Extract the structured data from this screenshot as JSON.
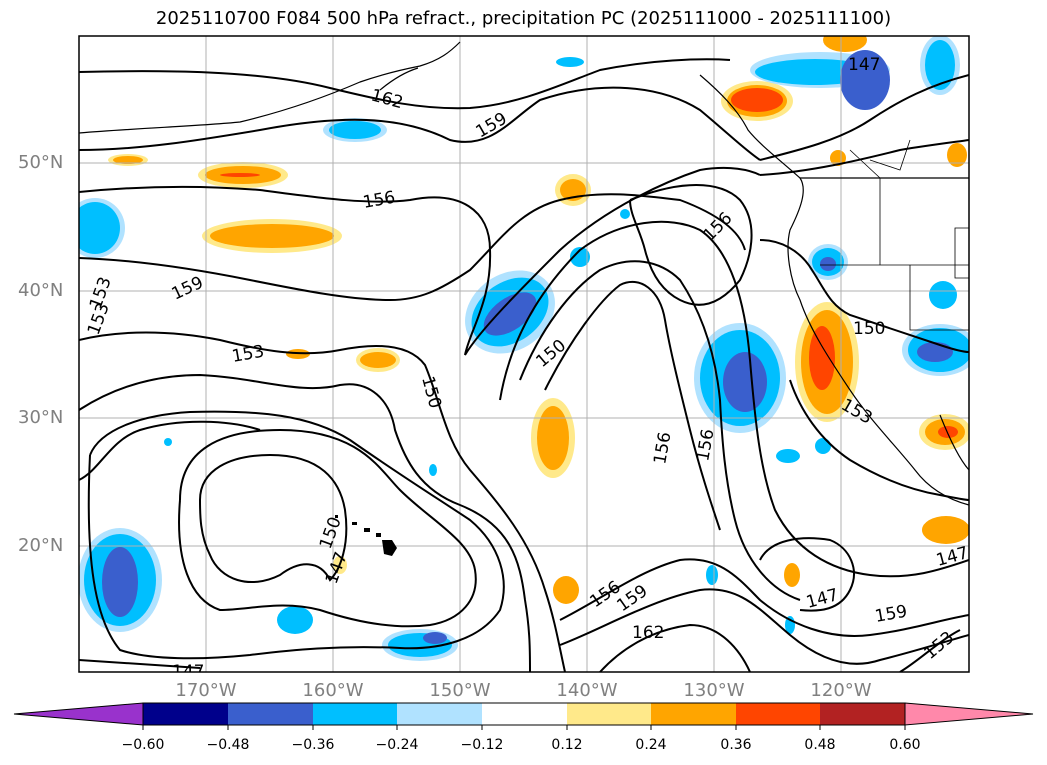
{
  "title": "2025110700 F084 500 hPa refract., precipitation PC (2025111000 - 2025111100)",
  "lat_labels": [
    "50°N",
    "40°N",
    "30°N",
    "20°N"
  ],
  "lon_labels": [
    "170°W",
    "160°W",
    "150°W",
    "140°W",
    "130°W",
    "120°W"
  ],
  "colorbar": {
    "ticks": [
      "−0.60",
      "−0.48",
      "−0.36",
      "−0.24",
      "−0.12",
      "0.12",
      "0.24",
      "0.36",
      "0.48",
      "0.60"
    ],
    "colors": [
      "#9932cc",
      "#00008b",
      "#3a5fcd",
      "#00bfff",
      "#b0e2ff",
      "#ffffff",
      "#ffe98a",
      "#ffa500",
      "#ff4500",
      "#b22222",
      "#ff88aa"
    ]
  },
  "contour_labels": [
    "162",
    "159",
    "156",
    "153",
    "150",
    "147",
    "159",
    "156",
    "153",
    "150",
    "156",
    "150",
    "156",
    "153",
    "150",
    "147",
    "147",
    "147",
    "156",
    "159",
    "162",
    "159",
    "153",
    "147",
    "153"
  ],
  "colors": {
    "contour": "#000000",
    "grid": "#b0b0b0",
    "axis_label": "#808080"
  }
}
